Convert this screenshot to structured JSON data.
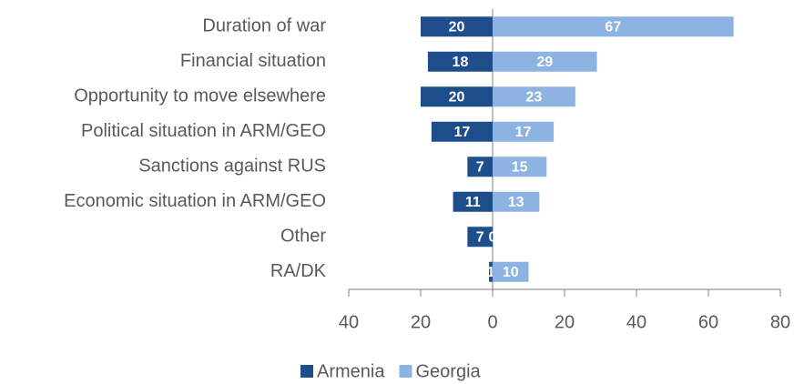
{
  "chart_data": {
    "type": "diverging_bar",
    "categories": [
      "Duration of war",
      "Financial situation",
      "Opportunity to move elsewhere",
      "Political situation in ARM/GEO",
      "Sanctions against RUS",
      "Economic situation in ARM/GEO",
      "Other",
      "RA/DK"
    ],
    "series": [
      {
        "name": "Armenia",
        "color": "#1f4e8c",
        "values": [
          -20,
          -18,
          -20,
          -17,
          -7,
          -11,
          -7,
          -1
        ],
        "value_labels": [
          "20",
          "18",
          "20",
          "17",
          "7",
          "11",
          "7",
          "1"
        ]
      },
      {
        "name": "Georgia",
        "color": "#8db3e2",
        "values": [
          67,
          29,
          23,
          17,
          15,
          13,
          0,
          10
        ]
      }
    ],
    "xlim": [
      -40,
      80
    ],
    "xticks": [
      {
        "value": -40,
        "label": "40"
      },
      {
        "value": -20,
        "label": "20"
      },
      0,
      20,
      40,
      60,
      80
    ],
    "legend": "bottom"
  }
}
